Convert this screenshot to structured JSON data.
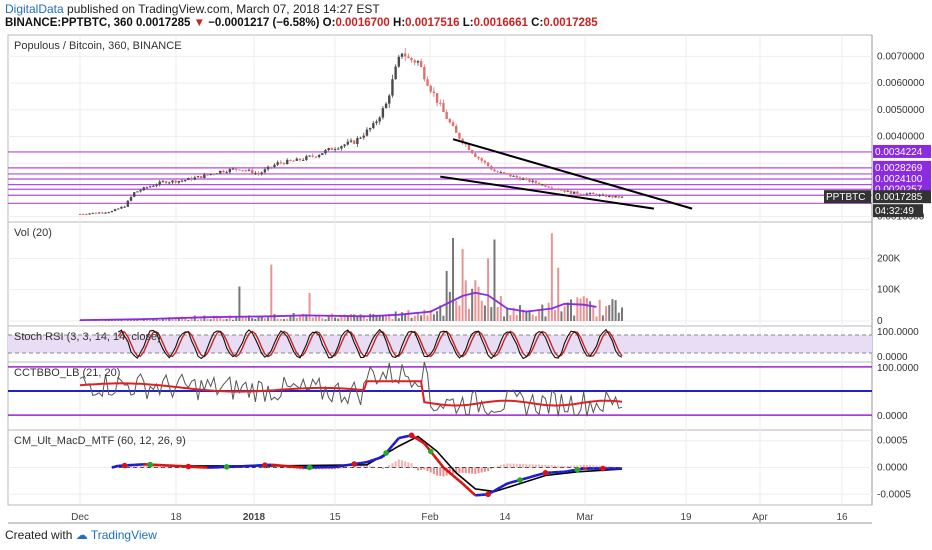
{
  "header": {
    "author": "DigitalData",
    "published_text": "published on TradingView.com, March 07, 2018 14:27 EST",
    "symbol": "BINANCE:PPTBTC, 360",
    "last": "0.0017285",
    "change": "−0.0001217 (−6.58%)",
    "o_label": "O:",
    "o_val": "0.0016700",
    "h_label": "H:",
    "h_val": "0.0017516",
    "l_label": "L:",
    "l_val": "0.0016661",
    "c_label": "C:",
    "c_val": "0.0017285"
  },
  "footer": {
    "created_with": "Created with",
    "tradingview": "TradingView"
  },
  "colors": {
    "candle_up": "#4a4a4a",
    "candle_down": "#e07070",
    "level": "#b44be0",
    "label_bg": "#8a2be2",
    "ma": "#8a2be2",
    "rsi_k": "#111111",
    "rsi_d": "#cc2222",
    "cci": "#555555",
    "cci_ma": "#dd2222",
    "macd_line": "#000000",
    "macd_up": "#1a1acc",
    "macd_down": "#dd1111",
    "macd_dot_up": "#22aa22"
  },
  "chart_data": [
    {
      "type": "candlestick",
      "title": "Populous / Bitcoin, 360, BINANCE",
      "ylim": [
        0.0008,
        0.0078
      ],
      "y_ticks": [
        "0.0070000",
        "0.0060000",
        "0.0050000",
        "0.0040000",
        "0.0010000"
      ],
      "x_ticks": [
        "Dec",
        "18",
        "2018",
        "15",
        "Feb",
        "14",
        "Mar",
        "19",
        "Apr",
        "16"
      ],
      "price_path": [
        [
          0,
          0.0011
        ],
        [
          6,
          0.00115
        ],
        [
          10,
          0.0012
        ],
        [
          14,
          0.0014
        ],
        [
          17,
          0.0019
        ],
        [
          21,
          0.0021
        ],
        [
          26,
          0.0023
        ],
        [
          32,
          0.00235
        ],
        [
          38,
          0.0025
        ],
        [
          44,
          0.0027
        ],
        [
          50,
          0.0028
        ],
        [
          56,
          0.0026
        ],
        [
          62,
          0.003
        ],
        [
          68,
          0.0031
        ],
        [
          74,
          0.0033
        ],
        [
          80,
          0.0036
        ],
        [
          86,
          0.0038
        ],
        [
          92,
          0.0044
        ],
        [
          96,
          0.0052
        ],
        [
          99,
          0.0065
        ],
        [
          101,
          0.0072
        ],
        [
          103,
          0.0069
        ],
        [
          106,
          0.0068
        ],
        [
          110,
          0.0058
        ],
        [
          114,
          0.0049
        ],
        [
          118,
          0.0041
        ],
        [
          124,
          0.0033
        ],
        [
          130,
          0.0027
        ],
        [
          136,
          0.0025
        ],
        [
          142,
          0.0023
        ],
        [
          148,
          0.0021
        ],
        [
          154,
          0.0019
        ],
        [
          160,
          0.00185
        ],
        [
          166,
          0.00175
        ],
        [
          170,
          0.0017285
        ]
      ],
      "levels": [
        {
          "price": 0.0034224,
          "label": "0.0034224"
        },
        {
          "price": 0.0028269,
          "label": "0.0028269"
        },
        {
          "price": 0.0026,
          "label": ""
        },
        {
          "price": 0.00241,
          "label": "0.0024100"
        },
        {
          "price": 0.0022,
          "label": ""
        },
        {
          "price": 0.0020257,
          "label": "0.0020257"
        },
        {
          "price": 0.0018,
          "label": ""
        },
        {
          "price": 0.0015,
          "label": ""
        }
      ],
      "trendlines": [
        {
          "from": [
            117,
            0.0039
          ],
          "to": [
            192,
            0.0013
          ]
        },
        {
          "from": [
            113,
            0.0025
          ],
          "to": [
            180,
            0.0013
          ]
        }
      ],
      "price_label": {
        "symbol": "PPTBTC",
        "value": "0.0017285",
        "countdown": "04:32:49"
      }
    },
    {
      "type": "bar",
      "title": "Vol (20)",
      "ylim": [
        0,
        300000
      ],
      "y_ticks": [
        "200K",
        "100K",
        "0"
      ],
      "spikes": [
        [
          50,
          110000
        ],
        [
          60,
          180000
        ],
        [
          72,
          90000
        ],
        [
          115,
          160000
        ],
        [
          117,
          265000
        ],
        [
          120,
          230000
        ],
        [
          128,
          200000
        ],
        [
          130,
          260000
        ],
        [
          148,
          280000
        ],
        [
          150,
          170000
        ]
      ],
      "ma_path": [
        [
          0,
          3000
        ],
        [
          20,
          6000
        ],
        [
          40,
          12000
        ],
        [
          60,
          15000
        ],
        [
          70,
          18000
        ],
        [
          90,
          15000
        ],
        [
          100,
          20000
        ],
        [
          110,
          30000
        ],
        [
          115,
          55000
        ],
        [
          120,
          80000
        ],
        [
          124,
          90000
        ],
        [
          128,
          82000
        ],
        [
          134,
          40000
        ],
        [
          140,
          30000
        ],
        [
          148,
          40000
        ],
        [
          152,
          55000
        ],
        [
          158,
          52000
        ],
        [
          162,
          45000
        ]
      ]
    },
    {
      "type": "line",
      "title": "Stoch RSI (3, 3, 14, 14, close)",
      "ylim": [
        0,
        100
      ],
      "y_ticks": [
        "100.0000",
        "0.0000"
      ],
      "bands": [
        80,
        20
      ]
    },
    {
      "type": "line",
      "title": "CCTBBO_LB (21, 20)",
      "y_ticks": [
        "100.0000",
        "0.0000"
      ],
      "levels": [
        100,
        50,
        0
      ]
    },
    {
      "type": "line",
      "title": "CM_Ult_MacD_MTF (60, 12, 26, 9)",
      "ylim": [
        -0.0007,
        0.0007
      ],
      "y_ticks": [
        "0.0005",
        "0.0000",
        "-0.0005"
      ],
      "macd_path": [
        [
          0,
          0.0
        ],
        [
          10,
          0.0
        ],
        [
          12,
          3e-05
        ],
        [
          20,
          6e-05
        ],
        [
          30,
          3e-05
        ],
        [
          40,
          0.0
        ],
        [
          50,
          2e-05
        ],
        [
          60,
          5e-05
        ],
        [
          70,
          0.0
        ],
        [
          80,
          1e-05
        ],
        [
          90,
          0.0001
        ],
        [
          95,
          0.0002
        ],
        [
          100,
          0.00055
        ],
        [
          104,
          0.0006
        ],
        [
          108,
          0.00045
        ],
        [
          114,
          0.0
        ],
        [
          120,
          -0.0003
        ],
        [
          124,
          -0.00052
        ],
        [
          128,
          -0.0005
        ],
        [
          134,
          -0.0003
        ],
        [
          140,
          -0.0002
        ],
        [
          146,
          -0.0001
        ],
        [
          152,
          -8e-05
        ],
        [
          158,
          -2e-05
        ],
        [
          166,
          -2e-05
        ],
        [
          170,
          -2e-05
        ]
      ],
      "signal_path": [
        [
          0,
          0.0
        ],
        [
          30,
          3e-05
        ],
        [
          60,
          3e-05
        ],
        [
          90,
          5e-05
        ],
        [
          100,
          0.0004
        ],
        [
          106,
          0.00058
        ],
        [
          112,
          0.0003
        ],
        [
          118,
          -0.0001
        ],
        [
          124,
          -0.0004
        ],
        [
          130,
          -0.00045
        ],
        [
          138,
          -0.0003
        ],
        [
          146,
          -0.00015
        ],
        [
          156,
          -8e-05
        ],
        [
          170,
          -3e-05
        ]
      ]
    }
  ]
}
